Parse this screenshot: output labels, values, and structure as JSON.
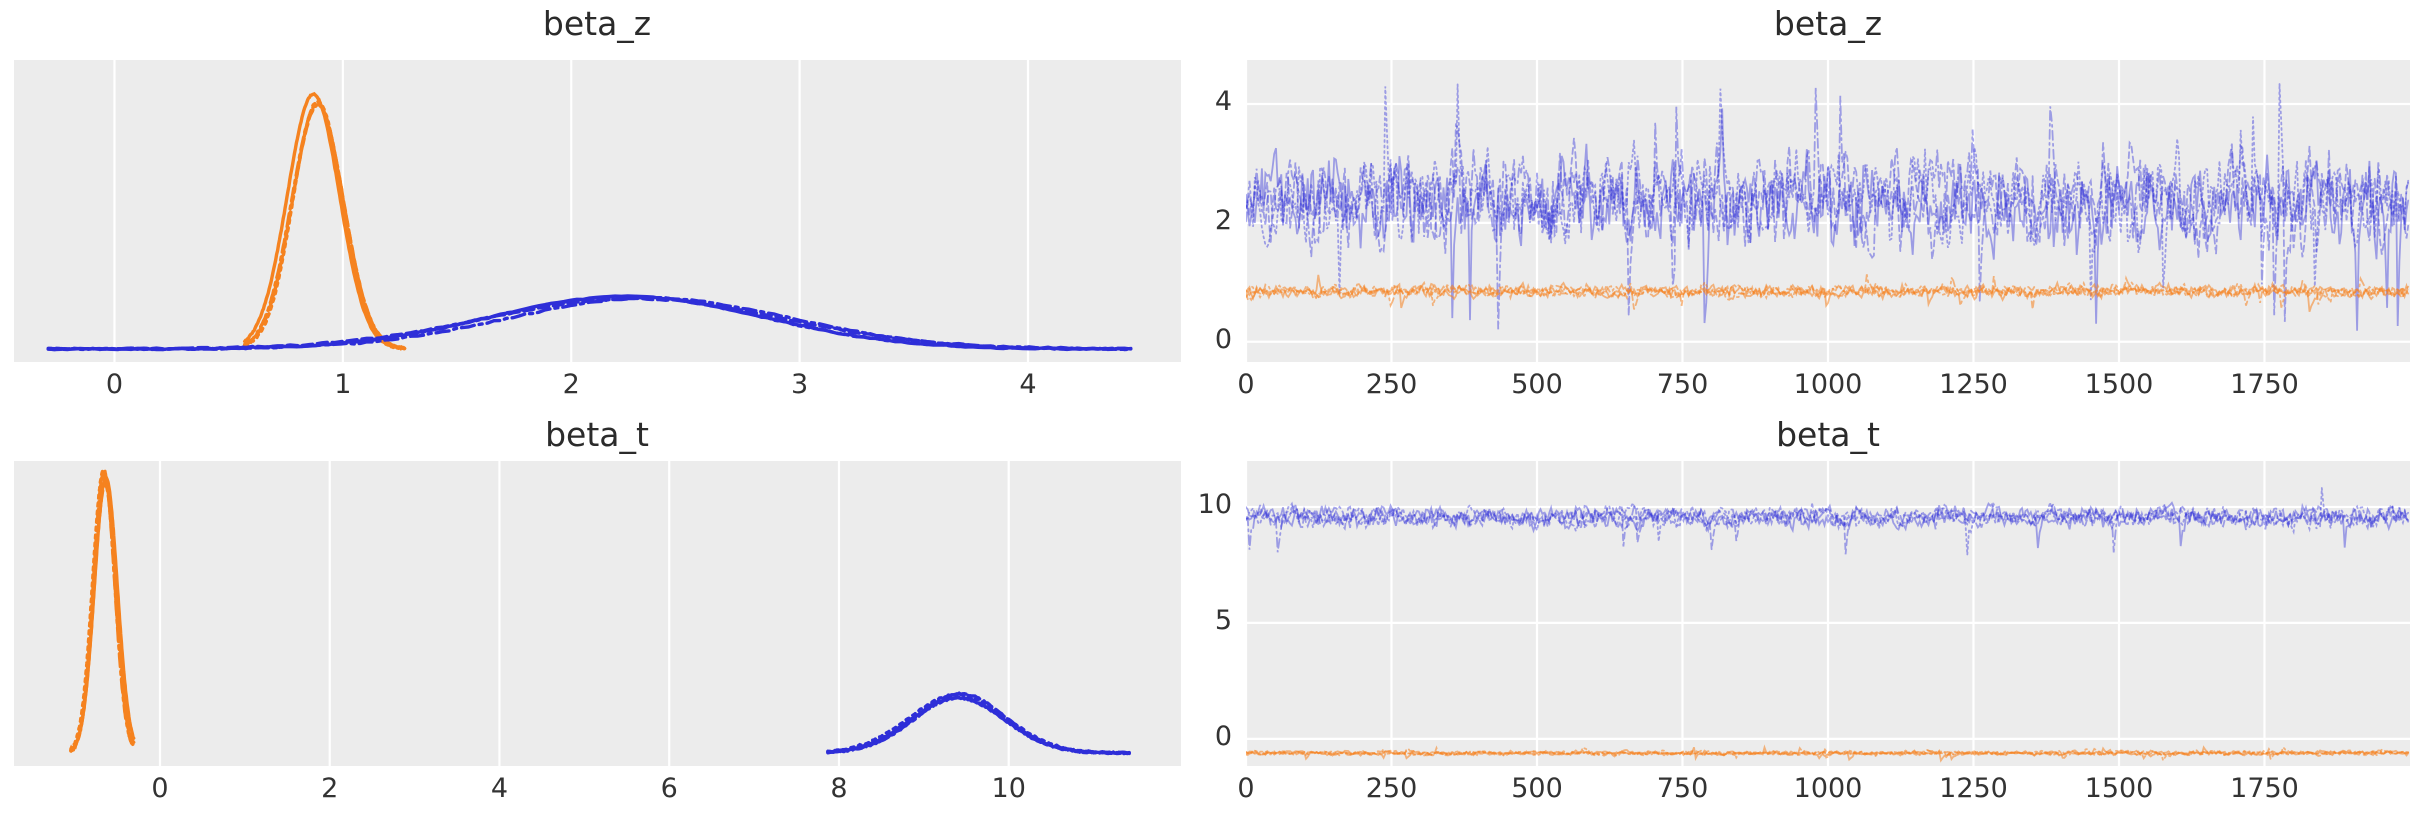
{
  "figure": {
    "kind": "arviz-style trace plot grid (2 variables x density+trace)",
    "background": "#ffffff"
  },
  "style": {
    "panel_bg": "#ececec",
    "grid_color": "#ffffff",
    "text_color": "#333333",
    "title_color": "#2b2b2b",
    "blue": "#2e2ed8",
    "orange": "#f5821f",
    "trace_blue_opacity": 0.42,
    "trace_orange_opacity": 0.55
  },
  "chart_data": [
    {
      "id": "kde-beta_z",
      "type": "area",
      "subtype": "kde-posterior-density",
      "title": "beta_z",
      "xlim": [
        -0.44,
        4.67
      ],
      "xticks": [
        0,
        1,
        2,
        3,
        4
      ],
      "yticks": [],
      "grid": "vertical-only",
      "legend": "none",
      "chains": 4,
      "series": [
        {
          "name": "posterior-kde-orange",
          "color_key": "orange",
          "mean": 0.88,
          "sd": 0.11,
          "support": [
            0.57,
            1.27
          ],
          "peak_rel_height": 0.845
        },
        {
          "name": "posterior-kde-blue",
          "color_key": "blue",
          "mean": 2.3,
          "sd": 0.62,
          "support": [
            -0.29,
            4.45
          ],
          "peak_rel_height": 0.17
        }
      ]
    },
    {
      "id": "trace-beta_z",
      "type": "line",
      "subtype": "mcmc-trace",
      "title": "beta_z",
      "n_samples": 2000,
      "chains": 4,
      "xlim": [
        0,
        2000
      ],
      "xticks": [
        0,
        250,
        500,
        750,
        1000,
        1250,
        1500,
        1750
      ],
      "ylim": [
        -0.34,
        4.74
      ],
      "yticks": [
        0,
        2,
        4
      ],
      "grid": "both",
      "legend": "none",
      "series": [
        {
          "name": "trace-blue",
          "color_key": "blue",
          "mean": 2.4,
          "sd": 0.55,
          "observed_range": [
            0.0,
            4.35
          ],
          "spike_p": 0.012,
          "down_bias": 0.55
        },
        {
          "name": "trace-orange",
          "color_key": "orange",
          "mean": 0.85,
          "sd": 0.075,
          "observed_range": [
            0.5,
            1.15
          ],
          "spike_p": 0.01,
          "down_bias": 0.6
        }
      ]
    },
    {
      "id": "kde-beta_t",
      "type": "area",
      "subtype": "kde-posterior-density",
      "title": "beta_t",
      "xlim": [
        -1.72,
        12.03
      ],
      "xticks": [
        0,
        2,
        4,
        6,
        8,
        10
      ],
      "yticks": [],
      "grid": "vertical-only",
      "legend": "none",
      "chains": 4,
      "series": [
        {
          "name": "posterior-kde-orange",
          "color_key": "orange",
          "mean": -0.65,
          "sd": 0.13,
          "support": [
            -1.05,
            -0.31
          ],
          "peak_rel_height": 0.92
        },
        {
          "name": "posterior-kde-blue",
          "color_key": "blue",
          "mean": 9.4,
          "sd": 0.55,
          "support": [
            7.87,
            11.42
          ],
          "peak_rel_height": 0.19
        }
      ]
    },
    {
      "id": "trace-beta_t",
      "type": "line",
      "subtype": "mcmc-trace",
      "title": "beta_t",
      "n_samples": 2000,
      "chains": 4,
      "xlim": [
        0,
        2000
      ],
      "xticks": [
        0,
        250,
        500,
        750,
        1000,
        1250,
        1500,
        1750
      ],
      "ylim": [
        -1.17,
        11.98
      ],
      "yticks": [
        0,
        5,
        10
      ],
      "grid": "both",
      "legend": "none",
      "series": [
        {
          "name": "trace-blue",
          "color_key": "blue",
          "mean": 9.55,
          "sd": 0.33,
          "observed_range": [
            7.8,
            10.9
          ],
          "spike_p": 0.008,
          "down_bias": 0.8
        },
        {
          "name": "trace-orange",
          "color_key": "orange",
          "mean": -0.62,
          "sd": 0.07,
          "observed_range": [
            -0.95,
            -0.35
          ],
          "spike_p": 0.008,
          "down_bias": 0.5
        }
      ]
    }
  ]
}
